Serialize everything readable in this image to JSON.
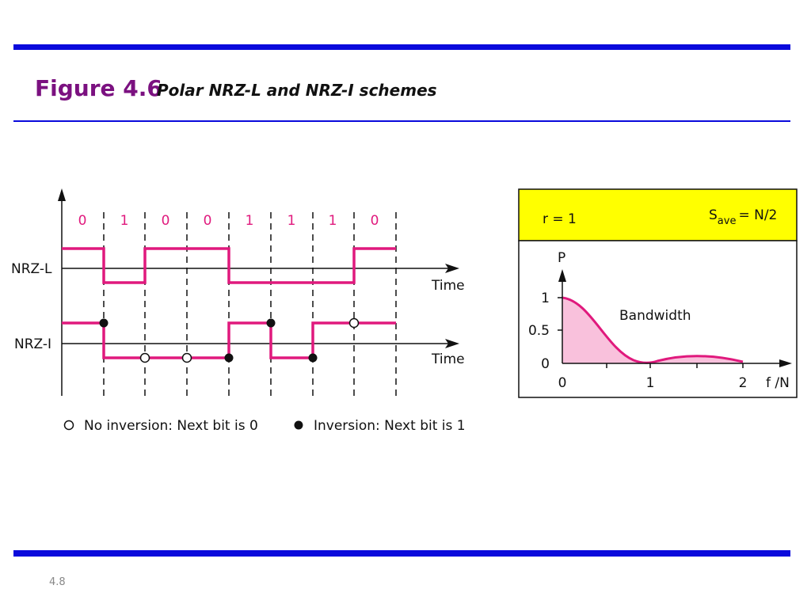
{
  "header": {
    "title": "Figure 4.6",
    "subtitle": "Polar NRZ-L and NRZ-I schemes"
  },
  "signal": {
    "bits": [
      "0",
      "1",
      "0",
      "0",
      "1",
      "1",
      "1",
      "0"
    ],
    "nrz_l_label": "NRZ-L",
    "nrz_i_label": "NRZ-I",
    "time_label_1": "Time",
    "time_label_2": "Time"
  },
  "legend": {
    "no_inversion": "No inversion: Next bit is 0",
    "inversion": "Inversion: Next bit is 1"
  },
  "spectrum": {
    "ratio": "r = 1",
    "s": "S",
    "s_sub": "ave",
    "s_value": "= N/2",
    "y_label": "P",
    "y_ticks": [
      "1",
      "0.5",
      "0"
    ],
    "x_ticks": [
      "0",
      "1",
      "2"
    ],
    "x_label": "f /N",
    "annotation": "Bandwidth"
  },
  "footer": {
    "page": "4.8"
  }
}
